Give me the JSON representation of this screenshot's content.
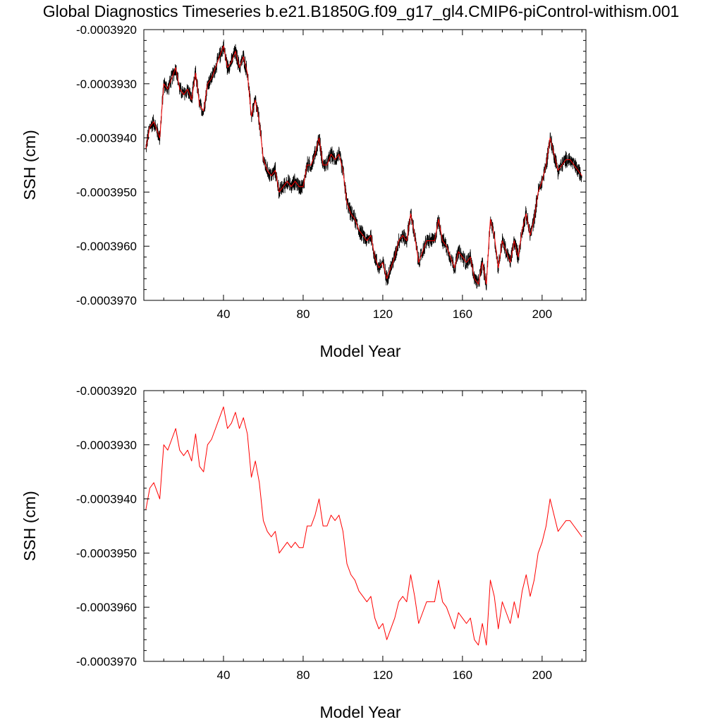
{
  "figure": {
    "title": "Global Diagnostics Timeseries b.e21.B1850G.f09_g17_gl4.CMIP6-piControl-withism.001"
  },
  "colors": {
    "raw": "#000000",
    "smooth": "#ff0000"
  },
  "chart_data": [
    {
      "type": "line",
      "xlabel": "Model Year",
      "ylabel": "SSH (cm)",
      "xlim": [
        0,
        222
      ],
      "ylim": [
        -0.000397,
        -0.000392
      ],
      "xticks": [
        40,
        80,
        120,
        160,
        200
      ],
      "xtick_labels": [
        "40",
        "80",
        "120",
        "160",
        "200"
      ],
      "yticks": [
        -0.000392,
        -0.000393,
        -0.000394,
        -0.000395,
        -0.000396,
        -0.000397
      ],
      "ytick_labels": [
        "-0.0003920",
        "-0.0003930",
        "-0.0003940",
        "-0.0003950",
        "-0.0003960",
        "-0.0003970"
      ],
      "raw_noise_amplitude": 1.8e-07,
      "series": [
        {
          "role": "smooth",
          "color": "#ff0000",
          "x": [
            1,
            3,
            5,
            8,
            10,
            12,
            14,
            16,
            18,
            20,
            22,
            24,
            26,
            28,
            30,
            32,
            34,
            36,
            38,
            40,
            42,
            44,
            46,
            48,
            50,
            52,
            54,
            56,
            58,
            60,
            62,
            64,
            66,
            68,
            70,
            72,
            74,
            76,
            78,
            80,
            82,
            84,
            86,
            88,
            90,
            92,
            94,
            96,
            98,
            100,
            102,
            104,
            106,
            108,
            110,
            112,
            114,
            116,
            118,
            120,
            122,
            124,
            126,
            128,
            130,
            132,
            134,
            136,
            138,
            140,
            142,
            144,
            146,
            148,
            150,
            152,
            154,
            156,
            158,
            160,
            162,
            164,
            166,
            168,
            170,
            172,
            174,
            176,
            178,
            180,
            182,
            184,
            186,
            188,
            190,
            192,
            194,
            196,
            198,
            200,
            202,
            204,
            206,
            208,
            210,
            212,
            214,
            216,
            218,
            220
          ],
          "y": [
            -0.0003942,
            -0.0003938,
            -0.0003937,
            -0.000394,
            -0.000393,
            -0.0003931,
            -0.0003929,
            -0.0003927,
            -0.0003931,
            -0.0003932,
            -0.0003931,
            -0.0003933,
            -0.0003928,
            -0.0003934,
            -0.0003935,
            -0.000393,
            -0.0003929,
            -0.0003927,
            -0.0003925,
            -0.0003923,
            -0.0003927,
            -0.0003926,
            -0.0003924,
            -0.0003927,
            -0.0003925,
            -0.0003928,
            -0.0003936,
            -0.0003933,
            -0.0003937,
            -0.0003944,
            -0.0003946,
            -0.0003947,
            -0.0003946,
            -0.000395,
            -0.0003949,
            -0.0003948,
            -0.0003949,
            -0.0003948,
            -0.0003949,
            -0.0003949,
            -0.0003945,
            -0.0003945,
            -0.0003943,
            -0.000394,
            -0.0003945,
            -0.0003945,
            -0.0003943,
            -0.0003944,
            -0.0003943,
            -0.0003946,
            -0.0003952,
            -0.0003954,
            -0.0003955,
            -0.0003957,
            -0.0003958,
            -0.0003959,
            -0.0003958,
            -0.0003962,
            -0.0003964,
            -0.0003963,
            -0.0003966,
            -0.0003964,
            -0.0003962,
            -0.0003959,
            -0.0003958,
            -0.0003959,
            -0.0003954,
            -0.0003958,
            -0.0003963,
            -0.0003961,
            -0.0003959,
            -0.0003959,
            -0.0003959,
            -0.0003955,
            -0.0003959,
            -0.000396,
            -0.0003962,
            -0.0003964,
            -0.0003961,
            -0.0003962,
            -0.0003963,
            -0.0003962,
            -0.0003966,
            -0.0003967,
            -0.0003963,
            -0.0003967,
            -0.0003955,
            -0.0003958,
            -0.0003964,
            -0.0003959,
            -0.0003961,
            -0.0003963,
            -0.0003959,
            -0.0003962,
            -0.0003957,
            -0.0003954,
            -0.0003958,
            -0.0003955,
            -0.000395,
            -0.0003948,
            -0.0003945,
            -0.000394,
            -0.0003943,
            -0.0003946,
            -0.0003945,
            -0.0003944,
            -0.0003944,
            -0.0003945,
            -0.0003946,
            -0.0003947
          ]
        }
      ]
    },
    {
      "type": "line",
      "xlabel": "Model Year",
      "ylabel": "SSH (cm)",
      "xlim": [
        0,
        222
      ],
      "ylim": [
        -0.000397,
        -0.000392
      ],
      "xticks": [
        40,
        80,
        120,
        160,
        200
      ],
      "xtick_labels": [
        "40",
        "80",
        "120",
        "160",
        "200"
      ],
      "yticks": [
        -0.000392,
        -0.000393,
        -0.000394,
        -0.000395,
        -0.000396,
        -0.000397
      ],
      "ytick_labels": [
        "-0.0003920",
        "-0.0003930",
        "-0.0003940",
        "-0.0003950",
        "-0.0003960",
        "-0.0003970"
      ],
      "series": [
        {
          "role": "smooth",
          "color": "#ff0000",
          "x": [
            1,
            3,
            5,
            8,
            10,
            12,
            14,
            16,
            18,
            20,
            22,
            24,
            26,
            28,
            30,
            32,
            34,
            36,
            38,
            40,
            42,
            44,
            46,
            48,
            50,
            52,
            54,
            56,
            58,
            60,
            62,
            64,
            66,
            68,
            70,
            72,
            74,
            76,
            78,
            80,
            82,
            84,
            86,
            88,
            90,
            92,
            94,
            96,
            98,
            100,
            102,
            104,
            106,
            108,
            110,
            112,
            114,
            116,
            118,
            120,
            122,
            124,
            126,
            128,
            130,
            132,
            134,
            136,
            138,
            140,
            142,
            144,
            146,
            148,
            150,
            152,
            154,
            156,
            158,
            160,
            162,
            164,
            166,
            168,
            170,
            172,
            174,
            176,
            178,
            180,
            182,
            184,
            186,
            188,
            190,
            192,
            194,
            196,
            198,
            200,
            202,
            204,
            206,
            208,
            210,
            212,
            214,
            216,
            218,
            220
          ],
          "y": [
            -0.0003942,
            -0.0003938,
            -0.0003937,
            -0.000394,
            -0.000393,
            -0.0003931,
            -0.0003929,
            -0.0003927,
            -0.0003931,
            -0.0003932,
            -0.0003931,
            -0.0003933,
            -0.0003928,
            -0.0003934,
            -0.0003935,
            -0.000393,
            -0.0003929,
            -0.0003927,
            -0.0003925,
            -0.0003923,
            -0.0003927,
            -0.0003926,
            -0.0003924,
            -0.0003927,
            -0.0003925,
            -0.0003928,
            -0.0003936,
            -0.0003933,
            -0.0003937,
            -0.0003944,
            -0.0003946,
            -0.0003947,
            -0.0003946,
            -0.000395,
            -0.0003949,
            -0.0003948,
            -0.0003949,
            -0.0003948,
            -0.0003949,
            -0.0003949,
            -0.0003945,
            -0.0003945,
            -0.0003943,
            -0.000394,
            -0.0003945,
            -0.0003945,
            -0.0003943,
            -0.0003944,
            -0.0003943,
            -0.0003946,
            -0.0003952,
            -0.0003954,
            -0.0003955,
            -0.0003957,
            -0.0003958,
            -0.0003959,
            -0.0003958,
            -0.0003962,
            -0.0003964,
            -0.0003963,
            -0.0003966,
            -0.0003964,
            -0.0003962,
            -0.0003959,
            -0.0003958,
            -0.0003959,
            -0.0003954,
            -0.0003958,
            -0.0003963,
            -0.0003961,
            -0.0003959,
            -0.0003959,
            -0.0003959,
            -0.0003955,
            -0.0003959,
            -0.000396,
            -0.0003962,
            -0.0003964,
            -0.0003961,
            -0.0003962,
            -0.0003963,
            -0.0003962,
            -0.0003966,
            -0.0003967,
            -0.0003963,
            -0.0003967,
            -0.0003955,
            -0.0003958,
            -0.0003964,
            -0.0003959,
            -0.0003961,
            -0.0003963,
            -0.0003959,
            -0.0003962,
            -0.0003957,
            -0.0003954,
            -0.0003958,
            -0.0003955,
            -0.000395,
            -0.0003948,
            -0.0003945,
            -0.000394,
            -0.0003943,
            -0.0003946,
            -0.0003945,
            -0.0003944,
            -0.0003944,
            -0.0003945,
            -0.0003946,
            -0.0003947
          ]
        }
      ]
    }
  ]
}
